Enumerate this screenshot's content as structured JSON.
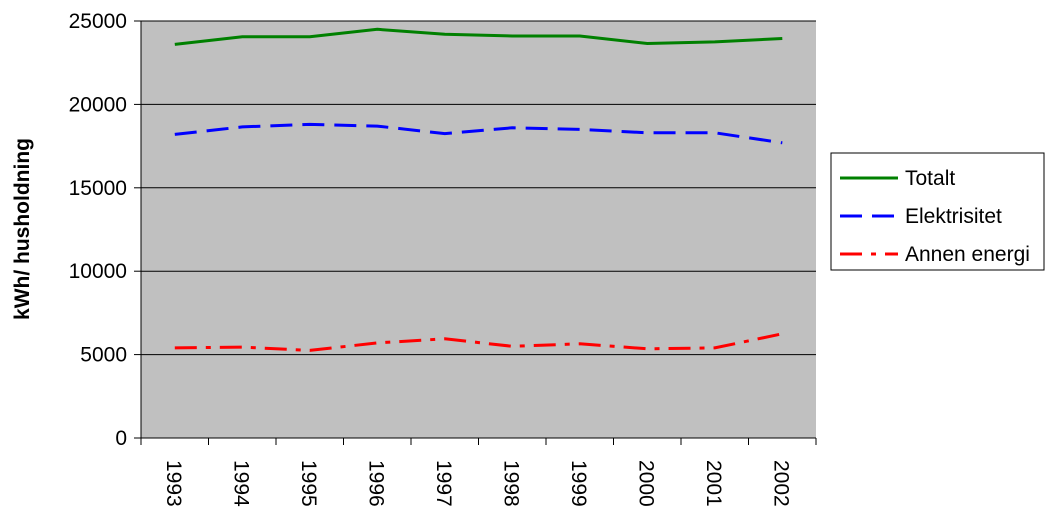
{
  "chart_data": {
    "type": "line",
    "title": "",
    "xlabel": "",
    "ylabel": "kWh/ husholdning",
    "categories": [
      "1993",
      "1994",
      "1995",
      "1996",
      "1997",
      "1998",
      "1999",
      "2000",
      "2001",
      "2002"
    ],
    "ylim": [
      0,
      25000
    ],
    "yticks": [
      "0",
      "5000",
      "10000",
      "15000",
      "20000",
      "25000"
    ],
    "grid": true,
    "legend_position": "right",
    "plot_background": "#C0C0C0",
    "series": [
      {
        "name": "Totalt",
        "color": "#008000",
        "line_style": "solid",
        "values": [
          23600,
          24050,
          24050,
          24500,
          24200,
          24100,
          24100,
          23650,
          23750,
          23950
        ]
      },
      {
        "name": "Elektrisitet",
        "color": "#0000FF",
        "line_style": "dashed",
        "values": [
          18200,
          18650,
          18800,
          18700,
          18250,
          18600,
          18500,
          18300,
          18300,
          17700
        ]
      },
      {
        "name": "Annen energi",
        "color": "#FF0000",
        "line_style": "dash-dot",
        "values": [
          5400,
          5450,
          5250,
          5700,
          5950,
          5500,
          5650,
          5350,
          5400,
          6250
        ]
      }
    ]
  }
}
